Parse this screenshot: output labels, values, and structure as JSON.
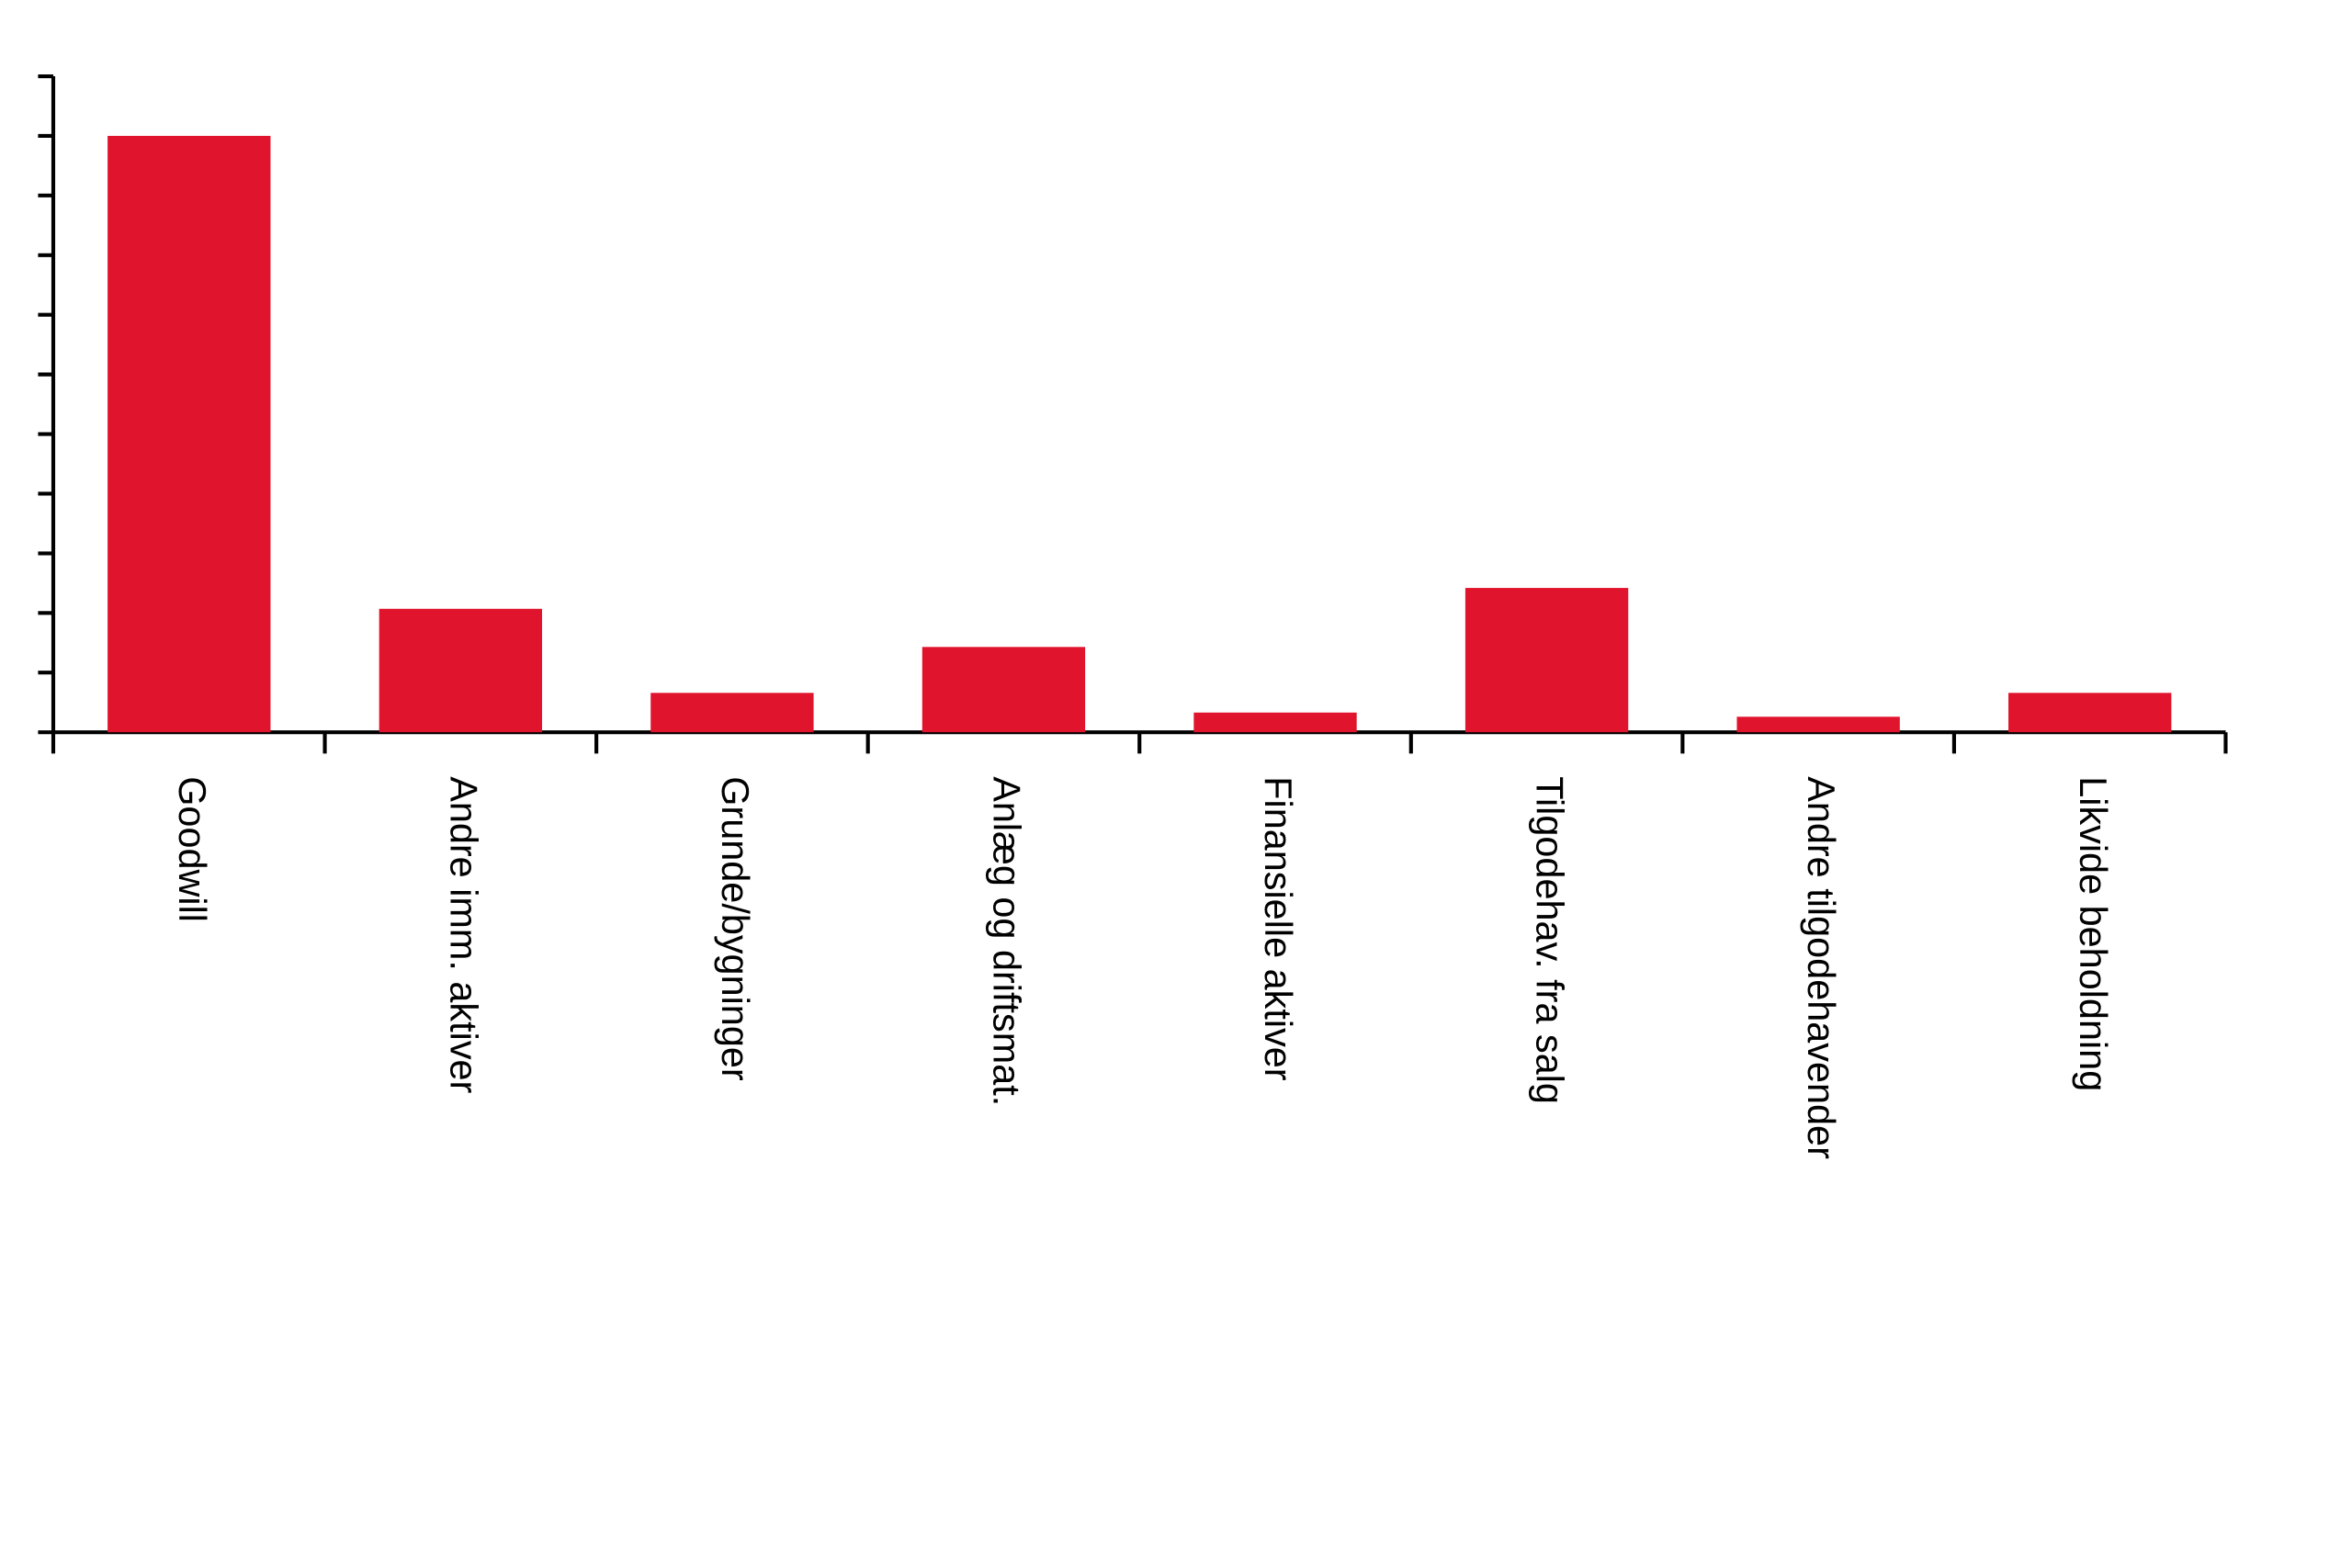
{
  "chart_data": {
    "type": "bar",
    "categories": [
      "Goodwill",
      "Andre imm. aktiver",
      "Grunde/bygninger",
      "Anlæg og driftsmat.",
      "Finansielle aktiver",
      "Tilgodehav. fra salg",
      "Andre tilgodehavender",
      "Likvide beholdning"
    ],
    "values": [
      10,
      2.07,
      0.66,
      1.43,
      0.33,
      2.42,
      0.26,
      0.66
    ],
    "color": "#e0142c",
    "ylim": [
      0,
      11
    ],
    "yticks": [
      0,
      1,
      2,
      3,
      4,
      5,
      6,
      7,
      8,
      9,
      10,
      11
    ],
    "grid": false
  }
}
